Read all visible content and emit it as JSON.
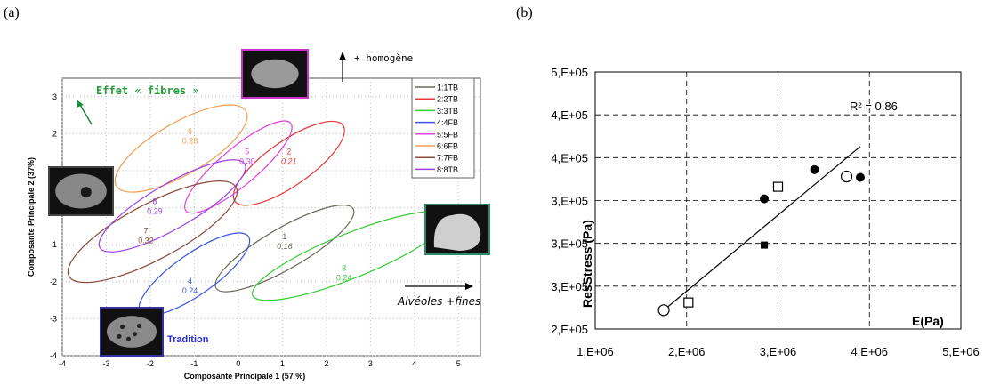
{
  "panels": {
    "a": {
      "tag": "(a)"
    },
    "b": {
      "tag": "(b)"
    }
  },
  "chart_data": [
    {
      "type": "scatter",
      "panel": "a",
      "xlabel": "Composante Principale 1 (57 %)",
      "ylabel": "Composante Principale 2 (37%)",
      "xlim": [
        -4,
        5.5
      ],
      "ylim": [
        -4,
        3.5
      ],
      "xticks": [
        -4,
        -3,
        -2,
        -1,
        0,
        1,
        2,
        3,
        4,
        5
      ],
      "yticks": [
        -4,
        -3,
        -2,
        -1,
        0,
        1,
        2,
        3
      ],
      "grid": true,
      "legend_position": "top-right",
      "legend": [
        {
          "label": "1:1TB",
          "color": "#6a6a5a"
        },
        {
          "label": "2:2TB",
          "color": "#e83838"
        },
        {
          "label": "3:3TB",
          "color": "#33cc33"
        },
        {
          "label": "4:4FB",
          "color": "#3a55e0"
        },
        {
          "label": "5:5FB",
          "color": "#e040e0"
        },
        {
          "label": "6:6FB",
          "color": "#f0a050"
        },
        {
          "label": "7:7FB",
          "color": "#8a4a3a"
        },
        {
          "label": "8:8TB",
          "color": "#a040e0"
        }
      ],
      "groups": [
        {
          "id": "1",
          "value": "0.16",
          "cx": 1.05,
          "cy": -1.1,
          "rx": 1.8,
          "ry": 0.55,
          "angle": 30,
          "color": "#6a6a5a"
        },
        {
          "id": "2",
          "value": "0.21",
          "cx": 1.15,
          "cy": 1.2,
          "rx": 1.5,
          "ry": 0.6,
          "angle": 35,
          "color": "#e83838"
        },
        {
          "id": "3",
          "value": "0.24",
          "cx": 2.55,
          "cy": -1.3,
          "rx": 2.4,
          "ry": 0.6,
          "angle": 22,
          "color": "#33cc33"
        },
        {
          "id": "4",
          "value": "0.24",
          "cx": -1.0,
          "cy": -1.8,
          "rx": 1.5,
          "ry": 0.55,
          "angle": 35,
          "color": "#3a55e0"
        },
        {
          "id": "5",
          "value": "0.30",
          "cx": 0.0,
          "cy": 1.1,
          "rx": 1.55,
          "ry": 0.5,
          "angle": 40,
          "color": "#e040e0"
        },
        {
          "id": "6",
          "value": "0.28",
          "cx": -1.3,
          "cy": 1.6,
          "rx": 1.7,
          "ry": 0.7,
          "angle": 30,
          "color": "#f0a050"
        },
        {
          "id": "7",
          "value": "0.32",
          "cx": -1.95,
          "cy": -0.65,
          "rx": 2.15,
          "ry": 0.75,
          "angle": 28,
          "color": "#8a4a3a"
        },
        {
          "id": "8",
          "value": "0.29",
          "cx": -1.5,
          "cy": 0.05,
          "rx": 1.9,
          "ry": 0.6,
          "angle": 30,
          "color": "#a040e0"
        }
      ],
      "annotations": {
        "fibres": "Effet « fibres »",
        "homogene": "+ homogène",
        "alveoles": "Alvéoles +fines",
        "tradition": "Tradition"
      }
    },
    {
      "type": "scatter",
      "panel": "b",
      "xlabel": "E(Pa)",
      "ylabel": "ResStress (Pa)",
      "xlim": [
        1000000,
        5000000
      ],
      "ylim": [
        200000,
        500000
      ],
      "xticks": [
        1000000,
        2000000,
        3000000,
        4000000,
        5000000
      ],
      "xticklabels": [
        "1,E+06",
        "2,E+06",
        "3,E+06",
        "4,E+06",
        "5,E+06"
      ],
      "yticks": [
        200000,
        250000,
        300000,
        350000,
        400000,
        450000,
        500000
      ],
      "yticklabels": [
        "2,E+05",
        "3,E+05",
        "3,E+05",
        "3,E+05",
        "4,E+05",
        "4,E+05",
        "5,E+05"
      ],
      "grid": true,
      "r2_label": "R² = 0,86",
      "series": [
        {
          "marker": "open-circle",
          "points": [
            [
              1750000,
              222000
            ],
            [
              3750000,
              378000
            ]
          ]
        },
        {
          "marker": "filled-circle",
          "points": [
            [
              2850000,
              352000
            ],
            [
              3400000,
              386000
            ],
            [
              3900000,
              377000
            ]
          ]
        },
        {
          "marker": "open-square",
          "points": [
            [
              2020000,
              231000
            ],
            [
              3000000,
              366000
            ]
          ]
        },
        {
          "marker": "filled-square",
          "points": [
            [
              2850000,
              298000
            ]
          ]
        }
      ],
      "fit_line": [
        [
          1750000,
          222000
        ],
        [
          3900000,
          413000
        ]
      ]
    }
  ]
}
